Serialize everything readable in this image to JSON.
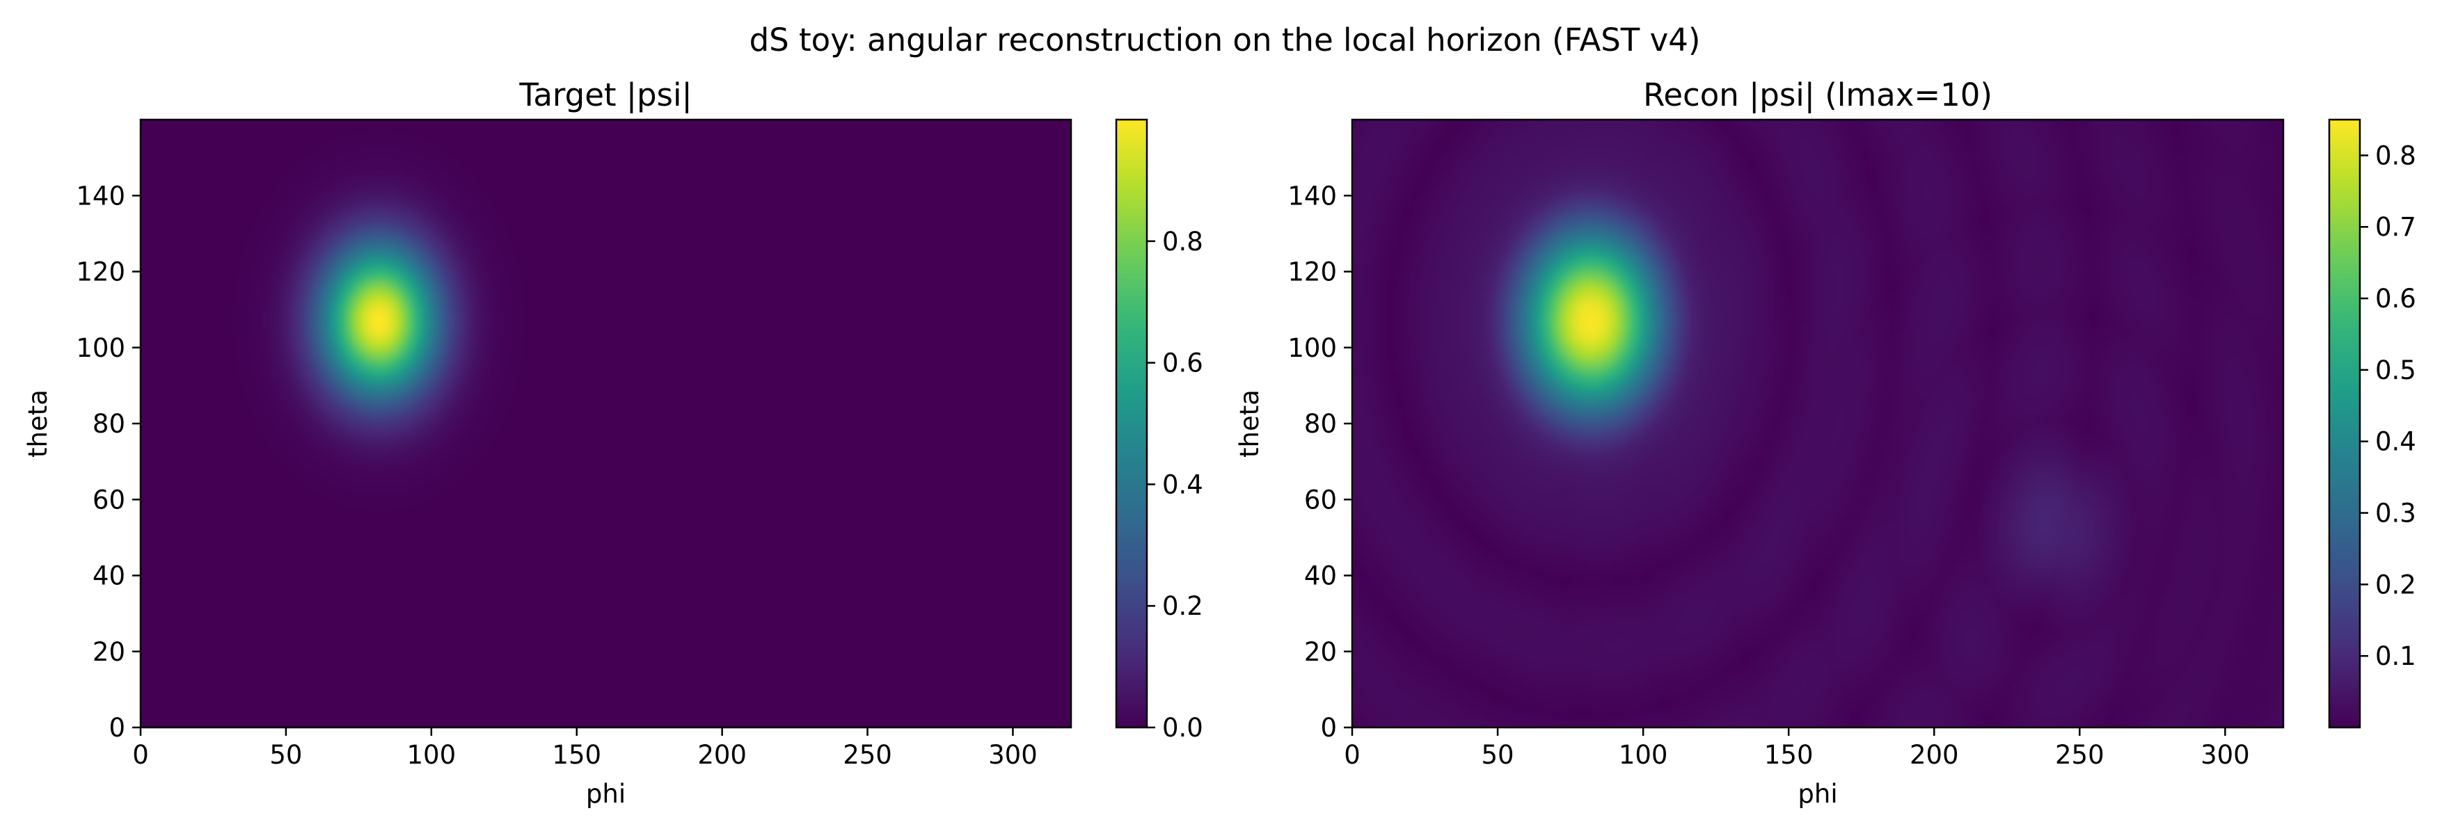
{
  "chart_data": {
    "suptitle": "dS toy: angular reconstruction on the local horizon (FAST v4)",
    "panels": [
      {
        "type": "heatmap",
        "title": "Target |psi|",
        "xlabel": "phi",
        "ylabel": "theta",
        "xlim": [
          0,
          320
        ],
        "ylim": [
          0,
          160
        ],
        "xticks": [
          0,
          50,
          100,
          150,
          200,
          250,
          300
        ],
        "yticks": [
          0,
          20,
          40,
          60,
          80,
          100,
          120,
          140
        ],
        "colormap": "viridis",
        "vmin": 0.0,
        "vmax": 1.0,
        "colorbar_ticks": [
          "0.0",
          "0.2",
          "0.4",
          "0.6",
          "0.8"
        ],
        "peak": {
          "phi": 82,
          "theta": 107,
          "value": 1.0
        },
        "blob_width_deg": 14,
        "secondary_blob": null,
        "ring_amplitude": 0.0
      },
      {
        "type": "heatmap",
        "title": "Recon |psi| (lmax=10)",
        "xlabel": "phi",
        "ylabel": "theta",
        "xlim": [
          0,
          320
        ],
        "ylim": [
          0,
          160
        ],
        "xticks": [
          0,
          50,
          100,
          150,
          200,
          250,
          300
        ],
        "yticks": [
          0,
          20,
          40,
          60,
          80,
          100,
          120,
          140
        ],
        "colormap": "viridis",
        "vmin": 0.0,
        "vmax": 0.85,
        "colorbar_ticks": [
          "0.1",
          "0.2",
          "0.3",
          "0.4",
          "0.5",
          "0.6",
          "0.7",
          "0.8"
        ],
        "peak": {
          "phi": 82,
          "theta": 107,
          "value": 0.84
        },
        "blob_width_deg": 16,
        "secondary_blob": {
          "phi": 242,
          "theta": 53,
          "value": 0.07
        },
        "ring_amplitude": 0.035
      }
    ]
  }
}
